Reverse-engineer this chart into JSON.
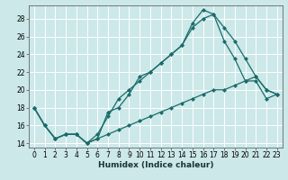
{
  "title": "",
  "xlabel": "Humidex (Indice chaleur)",
  "bg_color": "#cce8e8",
  "line_color": "#1a6b6b",
  "grid_color": "#ffffff",
  "xlim": [
    -0.5,
    23.5
  ],
  "ylim": [
    13.5,
    29.5
  ],
  "xticks": [
    0,
    1,
    2,
    3,
    4,
    5,
    6,
    7,
    8,
    9,
    10,
    11,
    12,
    13,
    14,
    15,
    16,
    17,
    18,
    19,
    20,
    21,
    22,
    23
  ],
  "yticks": [
    14,
    16,
    18,
    20,
    22,
    24,
    26,
    28
  ],
  "line1_x": [
    0,
    1,
    2,
    3,
    4,
    5,
    6,
    7,
    8,
    9,
    10,
    11,
    12,
    13,
    14,
    15,
    16,
    17,
    18,
    19,
    20,
    21,
    22,
    23
  ],
  "line1_y": [
    18,
    16,
    14.5,
    15,
    15,
    14,
    14.5,
    17.5,
    18,
    19.5,
    21.5,
    22,
    23,
    24,
    25,
    27.5,
    29,
    28.5,
    27,
    25.5,
    23.5,
    21.5,
    20,
    19.5
  ],
  "line2_x": [
    0,
    1,
    2,
    3,
    4,
    5,
    6,
    7,
    8,
    9,
    10,
    11,
    12,
    13,
    14,
    15,
    16,
    17,
    18,
    19,
    20,
    21,
    22,
    23
  ],
  "line2_y": [
    18,
    16,
    14.5,
    15,
    15,
    14,
    15,
    17,
    19,
    20,
    21,
    22,
    23,
    24,
    25,
    27,
    28,
    28.5,
    25.5,
    23.5,
    21,
    21.5,
    20,
    19.5
  ],
  "line3_x": [
    0,
    1,
    2,
    3,
    4,
    5,
    6,
    7,
    8,
    9,
    10,
    11,
    12,
    13,
    14,
    15,
    16,
    17,
    18,
    19,
    20,
    21,
    22,
    23
  ],
  "line3_y": [
    18,
    16,
    14.5,
    15,
    15,
    14,
    14.5,
    15,
    15.5,
    16,
    16.5,
    17,
    17.5,
    18,
    18.5,
    19,
    19.5,
    20,
    20,
    20.5,
    21,
    21,
    19,
    19.5
  ],
  "tick_fontsize": 5.5,
  "xlabel_fontsize": 6.5
}
